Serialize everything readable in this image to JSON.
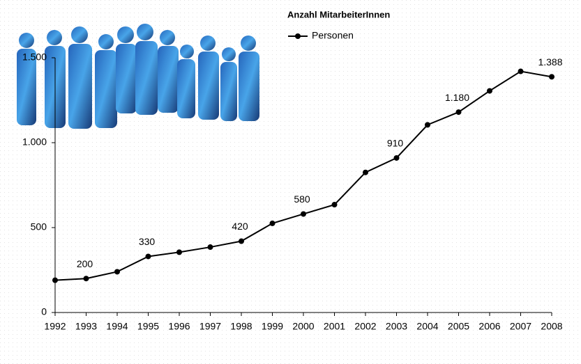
{
  "chart_data": {
    "type": "line",
    "legend_title": "Anzahl MitarbeiterInnen",
    "categories": [
      "1992",
      "1993",
      "1994",
      "1995",
      "1996",
      "1997",
      "1998",
      "1999",
      "2000",
      "2001",
      "2002",
      "2003",
      "2004",
      "2005",
      "2006",
      "2007",
      "2008"
    ],
    "series": [
      {
        "name": "Personen",
        "color": "#000000",
        "values": [
          190,
          200,
          240,
          330,
          355,
          385,
          420,
          525,
          580,
          635,
          825,
          910,
          1105,
          1180,
          1305,
          1420,
          1388
        ],
        "value_labels": [
          null,
          "200",
          null,
          "330",
          null,
          null,
          "420",
          null,
          "580",
          null,
          null,
          "910",
          null,
          "1.180",
          null,
          null,
          "1.388"
        ]
      }
    ],
    "ylim": [
      0,
      1500
    ],
    "yticks": [
      0,
      500,
      {
        "value": 1000,
        "label": "1.000"
      },
      {
        "value": 1500,
        "label": "1.500"
      }
    ],
    "grid": true
  }
}
